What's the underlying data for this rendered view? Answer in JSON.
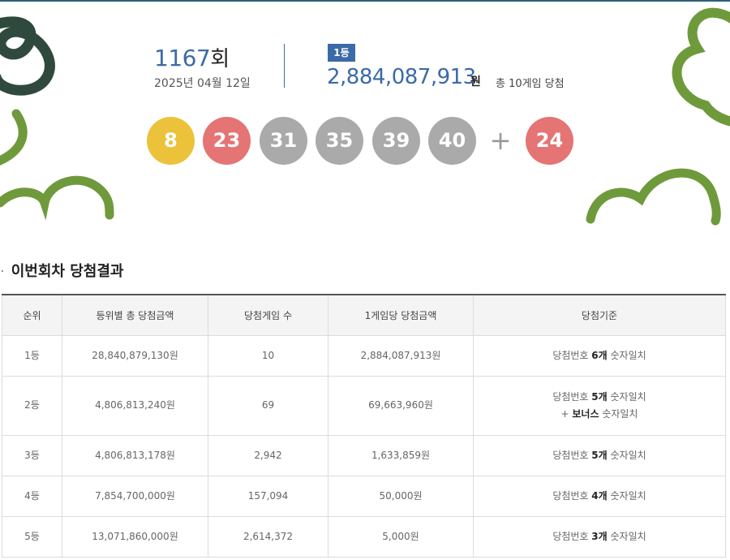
{
  "draw": {
    "round_number": "1167",
    "round_unit": "회",
    "date": "2025년 04월 12일"
  },
  "jackpot": {
    "rank_label": "1등",
    "amount": "2,884,087,913",
    "amount_unit": "원",
    "winners_note": "총 10게임 당첨"
  },
  "numbers": {
    "main": [
      {
        "value": "8",
        "color": "#ebc23a"
      },
      {
        "value": "23",
        "color": "#e57474"
      },
      {
        "value": "31",
        "color": "#aaaaaa"
      },
      {
        "value": "35",
        "color": "#aaaaaa"
      },
      {
        "value": "39",
        "color": "#aaaaaa"
      },
      {
        "value": "40",
        "color": "#aaaaaa"
      }
    ],
    "plus_symbol": "+",
    "bonus": {
      "value": "24",
      "color": "#e57474"
    }
  },
  "section": {
    "dot": "·",
    "title": "이번회차 당첨결과"
  },
  "table": {
    "headers": [
      "순위",
      "등위별 총 당첨금액",
      "당첨게임 수",
      "1게임당 당첨금액",
      "당첨기준"
    ],
    "rows": [
      {
        "rank": "1등",
        "total": "28,840,879,130원",
        "games": "10",
        "per_game": "2,884,087,913원",
        "crit_pre": "당첨번호 ",
        "crit_bold": "6개",
        "crit_post": " 숫자일치",
        "crit_line2_pre": "",
        "crit_line2_bold": "",
        "crit_line2_post": ""
      },
      {
        "rank": "2등",
        "total": "4,806,813,240원",
        "games": "69",
        "per_game": "69,663,960원",
        "crit_pre": "당첨번호 ",
        "crit_bold": "5개",
        "crit_post": " 숫자일치",
        "crit_line2_pre": "+ ",
        "crit_line2_bold": "보너스",
        "crit_line2_post": " 숫자일치"
      },
      {
        "rank": "3등",
        "total": "4,806,813,178원",
        "games": "2,942",
        "per_game": "1,633,859원",
        "crit_pre": "당첨번호 ",
        "crit_bold": "5개",
        "crit_post": " 숫자일치",
        "crit_line2_pre": "",
        "crit_line2_bold": "",
        "crit_line2_post": ""
      },
      {
        "rank": "4등",
        "total": "7,854,700,000원",
        "games": "157,094",
        "per_game": "50,000원",
        "crit_pre": "당첨번호 ",
        "crit_bold": "4개",
        "crit_post": " 숫자일치",
        "crit_line2_pre": "",
        "crit_line2_bold": "",
        "crit_line2_post": ""
      },
      {
        "rank": "5등",
        "total": "13,071,860,000원",
        "games": "2,614,372",
        "per_game": "5,000원",
        "crit_pre": "당첨번호 ",
        "crit_bold": "3개",
        "crit_post": " 숫자일치",
        "crit_line2_pre": "",
        "crit_line2_bold": "",
        "crit_line2_post": ""
      }
    ]
  },
  "colors": {
    "accent": "#3b6aa8",
    "decoration_dark": "#2f4a3d",
    "decoration_green": "#6f9a3c"
  }
}
